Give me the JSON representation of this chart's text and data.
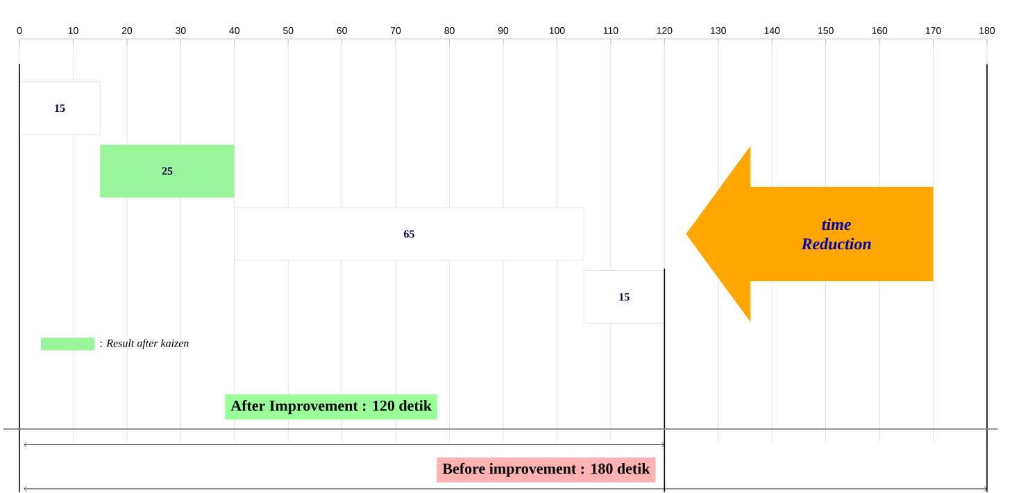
{
  "chart_data": {
    "type": "bar",
    "orientation": "horizontal",
    "categories": [
      null,
      null,
      null,
      null
    ],
    "values": [
      15,
      25,
      65,
      15
    ],
    "base": [
      0,
      15,
      40,
      105
    ],
    "colors": [
      "#ffffff",
      "#99f599",
      "#ffffff",
      "#ffffff"
    ],
    "data_labels": true,
    "xlim": [
      0,
      180
    ],
    "xticks": [
      0,
      10,
      20,
      30,
      40,
      50,
      60,
      70,
      80,
      90,
      100,
      110,
      120,
      130,
      140,
      150,
      160,
      170,
      180
    ],
    "grid": "x",
    "ref_lines": [
      {
        "axis": "x",
        "value": 120,
        "color": "#000000"
      },
      {
        "axis": "x",
        "value": 180,
        "color": "#000000"
      },
      {
        "axis": "x",
        "value": 0,
        "color": "#000000"
      }
    ],
    "annotations": [
      "time Reduction",
      ": *Result after kaizen*",
      "After Improvement : 120 detik",
      "Before improvement : 180 detik"
    ]
  }
}
